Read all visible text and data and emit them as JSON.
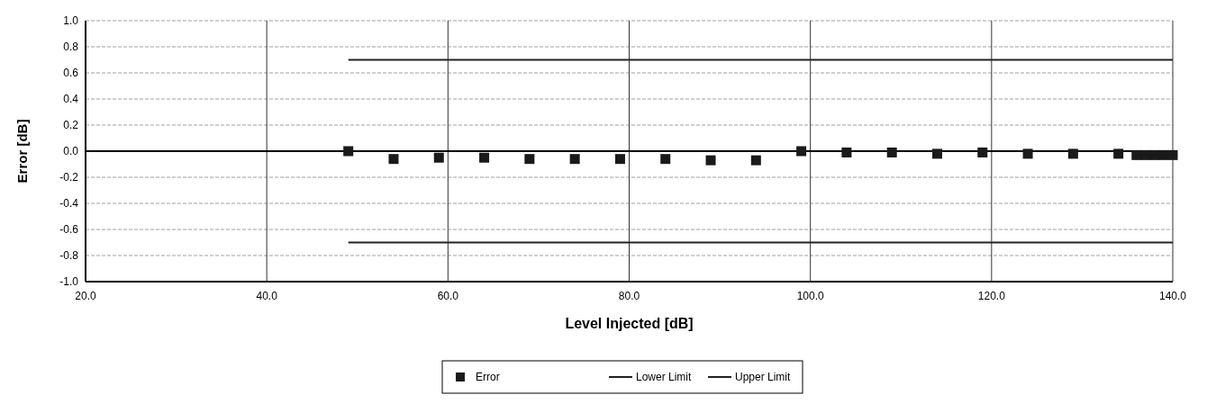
{
  "chart_data": {
    "type": "scatter",
    "xlabel": "Level Injected [dB]",
    "ylabel": "Error [dB]",
    "xlim": [
      20,
      140
    ],
    "xticks": [
      {
        "value": 20,
        "label": "20.0"
      },
      {
        "value": 40,
        "label": "40.0"
      },
      {
        "value": 60,
        "label": "60.0"
      },
      {
        "value": 80,
        "label": "80.0"
      },
      {
        "value": 100,
        "label": "100.0"
      },
      {
        "value": 120,
        "label": "120.0"
      },
      {
        "value": 140,
        "label": "140.0"
      }
    ],
    "ylim": [
      -1,
      1
    ],
    "yticks": [
      {
        "value": 1,
        "label": "1.0"
      },
      {
        "value": 0.8,
        "label": "0.8"
      },
      {
        "value": 0.6,
        "label": "0.6"
      },
      {
        "value": 0.4,
        "label": "0.4"
      },
      {
        "value": 0.2,
        "label": "0.2"
      },
      {
        "value": 0,
        "label": "0.0"
      },
      {
        "value": -0.2,
        "label": "-0.2"
      },
      {
        "value": -0.4,
        "label": "-0.4"
      },
      {
        "value": -0.6,
        "label": "-0.6"
      },
      {
        "value": -0.8,
        "label": "-0.8"
      },
      {
        "value": -1,
        "label": "-1.0"
      }
    ],
    "grid": true,
    "legend": "bottom",
    "ref_lines": [
      {
        "axis": "y",
        "value": 0,
        "color": "#000000"
      }
    ],
    "series": [
      {
        "name": "Error",
        "marker": "square",
        "color": "#1a1a1a",
        "x": [
          49,
          54,
          59,
          64,
          69,
          74,
          79,
          84,
          89,
          94,
          99,
          104,
          109,
          114,
          119,
          124,
          129,
          134,
          136,
          137,
          138,
          139,
          140
        ],
        "values": [
          0,
          -0.06,
          -0.05,
          -0.05,
          -0.06,
          -0.06,
          -0.06,
          -0.06,
          -0.07,
          -0.07,
          0,
          -0.01,
          -0.01,
          -0.02,
          -0.01,
          -0.02,
          -0.02,
          -0.02,
          -0.03,
          -0.03,
          -0.03,
          -0.03,
          -0.03
        ]
      },
      {
        "name": "Lower Limit",
        "type": "line",
        "color": "#222222",
        "x": [
          49,
          140
        ],
        "values": [
          -0.7,
          -0.7
        ]
      },
      {
        "name": "Upper Limit",
        "type": "line",
        "color": "#222222",
        "x": [
          49,
          140
        ],
        "values": [
          0.7,
          0.7
        ]
      }
    ]
  }
}
